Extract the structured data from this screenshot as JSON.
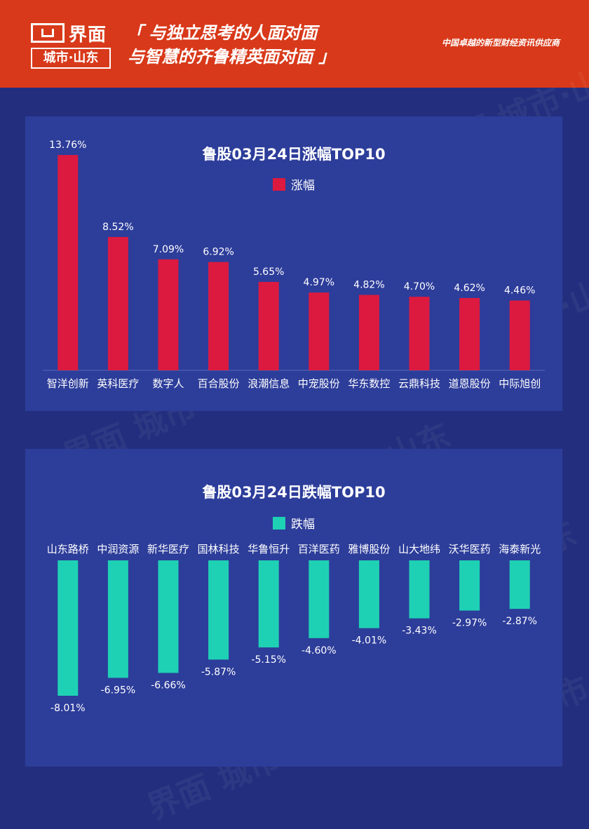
{
  "header": {
    "brand": "界面",
    "sub_brand": "城市·山东",
    "slogan_line1": "「 与独立思考的人面对面",
    "slogan_line2": "与智慧的齐鲁精英面对面 」",
    "tagline": "中国卓越的新型财经资讯供应商"
  },
  "watermark_text": "界面 城市·山东",
  "colors": {
    "header_bg": "#d8391a",
    "page_bg": "#232f7e",
    "panel_bg": "#2d3d9a",
    "gain_bar": "#dc1a3f",
    "loss_bar": "#1fd1b4"
  },
  "chart_data": [
    {
      "type": "bar",
      "title": "鲁股03月24日涨幅TOP10",
      "series": [
        {
          "name": "涨幅",
          "values": [
            13.76,
            8.52,
            7.09,
            6.92,
            5.65,
            4.97,
            4.82,
            4.7,
            4.62,
            4.46
          ],
          "labels": [
            "13.76%",
            "8.52%",
            "7.09%",
            "6.92%",
            "5.65%",
            "4.97%",
            "4.82%",
            "4.70%",
            "4.62%",
            "4.46%"
          ]
        }
      ],
      "categories": [
        "智洋创新",
        "英科医疗",
        "数字人",
        "百合股份",
        "浪潮信息",
        "中宠股份",
        "华东数控",
        "云鼎科技",
        "道恩股份",
        "中际旭创"
      ],
      "ylim": [
        0,
        13.76
      ],
      "legend_position": "top-center",
      "grid": false
    },
    {
      "type": "bar",
      "title": "鲁股03月24日跌幅TOP10",
      "series": [
        {
          "name": "跌幅",
          "values": [
            -8.01,
            -6.95,
            -6.66,
            -5.87,
            -5.15,
            -4.6,
            -4.01,
            -3.43,
            -2.97,
            -2.87
          ],
          "labels": [
            "-8.01%",
            "-6.95%",
            "-6.66%",
            "-5.87%",
            "-5.15%",
            "-4.60%",
            "-4.01%",
            "-3.43%",
            "-2.97%",
            "-2.87%"
          ]
        }
      ],
      "categories": [
        "山东路桥",
        "中润资源",
        "新华医疗",
        "国林科技",
        "华鲁恒升",
        "百洋医药",
        "雅博股份",
        "山大地纬",
        "沃华医药",
        "海泰新光"
      ],
      "ylim": [
        -8.01,
        0
      ],
      "legend_position": "top-center",
      "grid": false
    }
  ]
}
